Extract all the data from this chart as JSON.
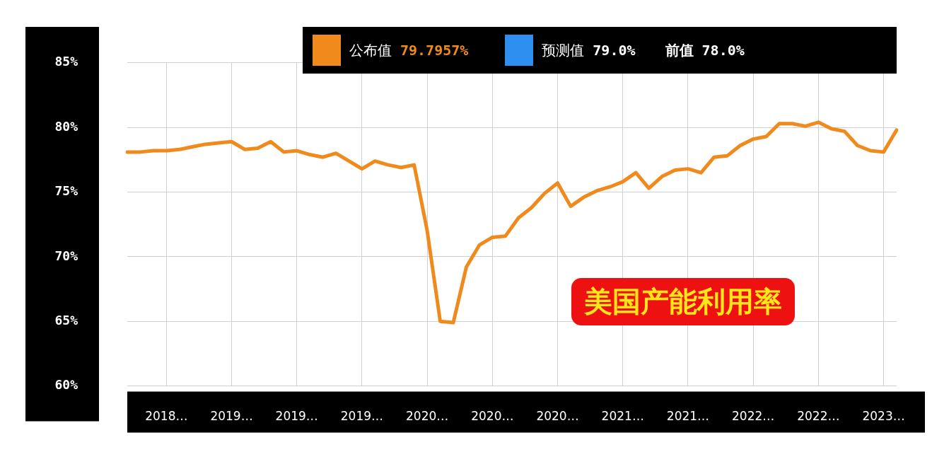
{
  "chart_data": {
    "type": "line",
    "title": "美国产能利用率",
    "categories": [
      null,
      null,
      null,
      "2018…",
      null,
      null,
      null,
      null,
      "2019…",
      null,
      null,
      null,
      null,
      "2019…",
      null,
      null,
      null,
      null,
      "2019…",
      null,
      null,
      null,
      null,
      "2020…",
      null,
      null,
      null,
      null,
      "2020…",
      null,
      null,
      null,
      null,
      "2020…",
      null,
      null,
      null,
      null,
      "2021…",
      null,
      null,
      null,
      null,
      "2021…",
      null,
      null,
      null,
      null,
      "2022…",
      null,
      null,
      null,
      null,
      "2022…",
      null,
      null,
      null,
      null,
      "2023…",
      null
    ],
    "series": [
      {
        "name": "公布值",
        "color": "#f08a1c",
        "values": [
          78.1,
          78.1,
          78.2,
          78.2,
          78.3,
          78.5,
          78.7,
          78.8,
          78.9,
          78.3,
          78.4,
          78.9,
          78.1,
          78.2,
          77.9,
          77.7,
          78.0,
          77.4,
          76.8,
          77.4,
          77.1,
          76.9,
          77.1,
          72.0,
          65.0,
          64.9,
          69.2,
          70.9,
          71.5,
          71.6,
          73.0,
          73.8,
          74.9,
          75.7,
          73.9,
          74.6,
          75.1,
          75.4,
          75.8,
          76.5,
          75.3,
          76.2,
          76.7,
          76.8,
          76.5,
          77.7,
          77.8,
          78.6,
          79.1,
          79.3,
          80.3,
          80.3,
          80.1,
          80.4,
          79.9,
          79.7,
          78.6,
          78.2,
          78.1,
          79.8
        ]
      }
    ],
    "annotations": [
      "79.7957%",
      "预测值",
      "79.0%",
      "前值",
      "78.0%"
    ],
    "ylim": [
      60,
      85
    ],
    "yticks": [
      {
        "value": 60,
        "label": "60%"
      },
      {
        "value": 65,
        "label": "65%"
      },
      {
        "value": 70,
        "label": "70%"
      },
      {
        "value": 75,
        "label": "75%"
      },
      {
        "value": 80,
        "label": "80%"
      },
      {
        "value": 85,
        "label": "85%"
      }
    ],
    "grid": true,
    "legend": "top",
    "marker": "none",
    "line_style": "solid"
  }
}
